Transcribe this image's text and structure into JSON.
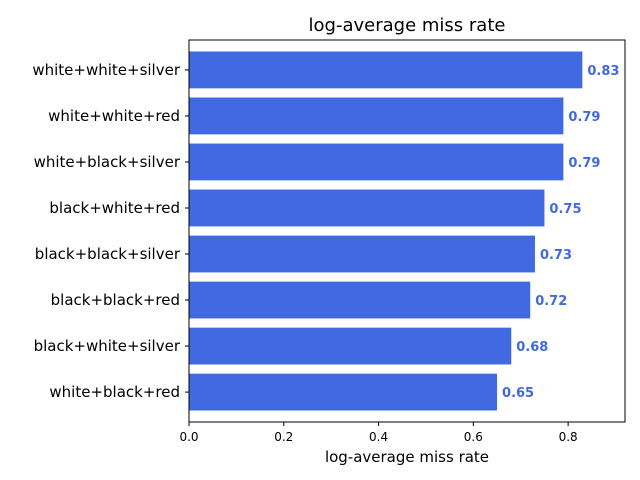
{
  "chart_data": {
    "type": "bar",
    "orientation": "horizontal",
    "title": "log-average miss rate",
    "xlabel": "log-average miss rate",
    "ylabel": "",
    "categories": [
      "white+white+silver",
      "white+white+red",
      "white+black+silver",
      "black+white+red",
      "black+black+silver",
      "black+black+red",
      "black+white+silver",
      "white+black+red"
    ],
    "values": [
      0.83,
      0.79,
      0.79,
      0.75,
      0.73,
      0.72,
      0.68,
      0.65
    ],
    "value_labels": [
      "0.83",
      "0.79",
      "0.79",
      "0.75",
      "0.73",
      "0.72",
      "0.68",
      "0.65"
    ],
    "xlim": [
      0,
      0.92
    ],
    "xticks": [
      0.0,
      0.2,
      0.4,
      0.6,
      0.8
    ],
    "xtick_labels": [
      "0.0",
      "0.2",
      "0.4",
      "0.6",
      "0.8"
    ],
    "grid": false,
    "bar_color": "#4169e1",
    "value_label_color": "#4169e1"
  }
}
